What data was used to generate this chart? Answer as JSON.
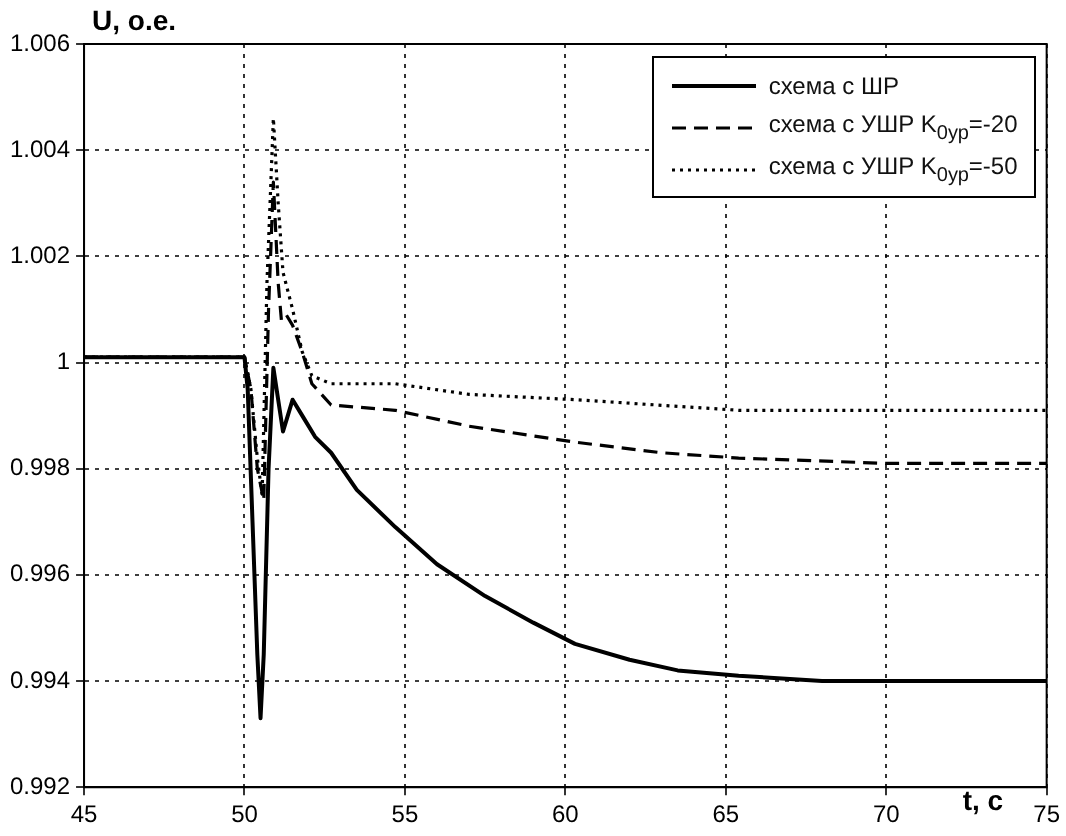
{
  "chart_data": {
    "type": "line",
    "xlabel": "t, с",
    "ylabel": "U, о.е.",
    "xlim": [
      45,
      75
    ],
    "xticks": [
      45,
      50,
      55,
      60,
      65,
      70,
      75
    ],
    "ylim": [
      0.992,
      1.006
    ],
    "yticks": [
      0.992,
      0.994,
      0.996,
      0.998,
      1,
      1.002,
      1.004,
      1.006
    ],
    "grid": true,
    "legend": "top right",
    "marker": "none",
    "series": [
      {
        "name": "схема с ШР",
        "color": "#000000",
        "line_style": "solid",
        "x": [
          45,
          50.0,
          50.1,
          50.25,
          50.4,
          50.5,
          50.6,
          50.75,
          50.9,
          51.05,
          51.2,
          51.35,
          51.5,
          51.8,
          52.2,
          52.7,
          53.5,
          54.7,
          56,
          57.5,
          59,
          60.3,
          62,
          63.5,
          65.4,
          68,
          72,
          75
        ],
        "values": [
          1.0001,
          1.0001,
          0.9995,
          0.997,
          0.9945,
          0.9933,
          0.9945,
          0.998,
          0.9999,
          0.9993,
          0.9987,
          0.999,
          0.9993,
          0.999,
          0.9986,
          0.9983,
          0.9976,
          0.9969,
          0.9962,
          0.9956,
          0.9951,
          0.9947,
          0.9944,
          0.9942,
          0.9941,
          0.994,
          0.994,
          0.994
        ]
      },
      {
        "name": "схема с УШР K$_{0ур}$=-20",
        "color": "#000000",
        "line_style": "dashed",
        "x": [
          45,
          50.0,
          50.2,
          50.4,
          50.6,
          50.75,
          50.9,
          51.05,
          51.15,
          51.3,
          51.5,
          51.8,
          52.1,
          52.7,
          54.7,
          57,
          60.3,
          63,
          65.4,
          70,
          75
        ],
        "values": [
          1.0001,
          1.0001,
          0.9995,
          0.998,
          0.9974,
          1.001,
          1.0034,
          1.0015,
          1.0008,
          1.0009,
          1.0007,
          1.0002,
          0.9996,
          0.9992,
          0.9991,
          0.9988,
          0.9985,
          0.9983,
          0.9982,
          0.9981,
          0.9981
        ]
      },
      {
        "name": "схема с УШР K$_{0ур}$=-50",
        "color": "#000000",
        "line_style": "dotted",
        "x": [
          45,
          50.0,
          50.2,
          50.4,
          50.55,
          50.7,
          50.9,
          51.05,
          51.2,
          51.5,
          51.8,
          52.1,
          52.7,
          54.7,
          57,
          60.3,
          65.4,
          70,
          75
        ],
        "values": [
          1.0001,
          1.0001,
          0.9995,
          0.9982,
          0.9975,
          1.0015,
          1.0046,
          1.003,
          1.0017,
          1.001,
          1.0002,
          0.99975,
          0.9996,
          0.9996,
          0.9994,
          0.9993,
          0.9991,
          0.9991,
          0.9991
        ]
      }
    ]
  }
}
